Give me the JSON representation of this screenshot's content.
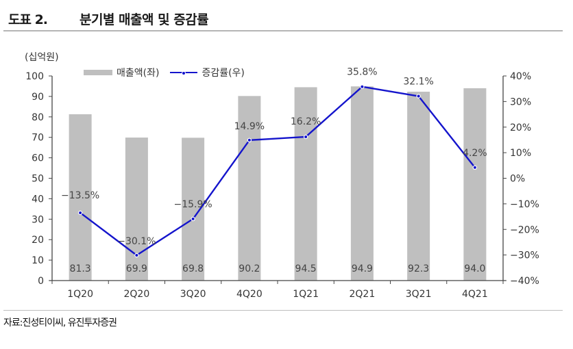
{
  "header": {
    "figure_number": "도표 2.",
    "title": "분기별 매출액 및 증감률"
  },
  "source": "자료:진성티이씨, 유진투자증권",
  "colors": {
    "bar": "#bfbfbf",
    "line": "#1414cc",
    "axis": "#444444"
  },
  "chart_data": {
    "type": "bar+line",
    "title": "분기별 매출액 및 증감률",
    "unit_label": "(십억원)",
    "categories": [
      "1Q20",
      "2Q20",
      "3Q20",
      "4Q20",
      "1Q21",
      "2Q21",
      "3Q21",
      "4Q21"
    ],
    "series": [
      {
        "name": "매출액(좌)",
        "type": "bar",
        "axis": "left",
        "values": [
          81.3,
          69.9,
          69.8,
          90.2,
          94.5,
          94.9,
          92.3,
          94.0
        ],
        "labels": [
          "81.3",
          "69.9",
          "69.8",
          "90.2",
          "94.5",
          "94.9",
          "92.3",
          "94.0"
        ]
      },
      {
        "name": "증감률(우)",
        "type": "line",
        "axis": "right",
        "values": [
          -13.5,
          -30.1,
          -15.9,
          14.9,
          16.2,
          35.8,
          32.1,
          4.2
        ],
        "labels": [
          "-13.5%",
          "-30.1%",
          "-15.9%",
          "14.9%",
          "16.2%",
          "35.8%",
          "32.1%",
          "4.2%"
        ]
      }
    ],
    "left_axis": {
      "ylim": [
        0,
        100
      ],
      "ticks": [
        0,
        10,
        20,
        30,
        40,
        50,
        60,
        70,
        80,
        90,
        100
      ],
      "tick_labels": [
        "0",
        "10",
        "20",
        "30",
        "40",
        "50",
        "60",
        "70",
        "80",
        "90",
        "100"
      ]
    },
    "right_axis": {
      "ylim": [
        -40,
        40
      ],
      "ticks": [
        -40,
        -30,
        -20,
        -10,
        0,
        10,
        20,
        30,
        40
      ],
      "tick_labels": [
        "−40%",
        "−30%",
        "−20%",
        "−10%",
        "0%",
        "10%",
        "20%",
        "30%",
        "40%"
      ]
    },
    "legend": [
      "매출액(좌)",
      "증감률(우)"
    ],
    "legend_position": "top-left",
    "grid": false
  }
}
